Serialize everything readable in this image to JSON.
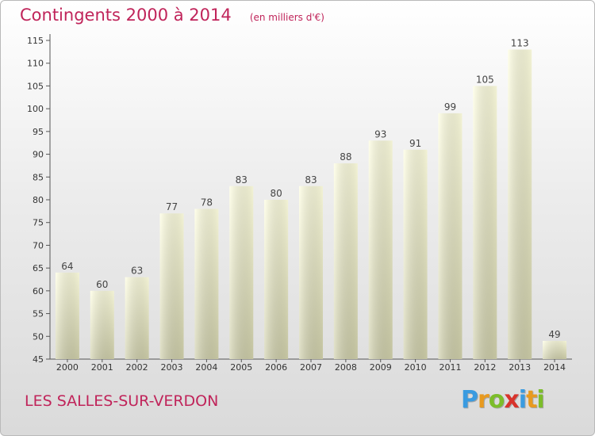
{
  "chart_data": {
    "type": "bar",
    "title": "Contingents 2000 à 2014",
    "subtitle": "(en milliers d'€)",
    "categories": [
      "2000",
      "2001",
      "2002",
      "2003",
      "2004",
      "2005",
      "2006",
      "2007",
      "2008",
      "2009",
      "2010",
      "2011",
      "2012",
      "2013",
      "2014"
    ],
    "values": [
      64,
      60,
      63,
      77,
      78,
      83,
      80,
      83,
      88,
      93,
      91,
      99,
      105,
      113,
      49
    ],
    "ylim": [
      45,
      115
    ],
    "yticks": [
      45,
      50,
      55,
      60,
      65,
      70,
      75,
      80,
      85,
      90,
      95,
      100,
      105,
      110,
      115
    ],
    "grid": false,
    "bar_color": "#f6f6cf"
  },
  "footer": {
    "commune": "LES SALLES-SUR-VERDON"
  },
  "brand": {
    "letters": [
      "P",
      "r",
      "o",
      "x",
      "i",
      "t",
      "i"
    ],
    "colors": [
      "#3a9be0",
      "#e89a1f",
      "#7cbd2a",
      "#d8332b",
      "#3a9be0",
      "#e89a1f",
      "#7cbd2a"
    ]
  }
}
